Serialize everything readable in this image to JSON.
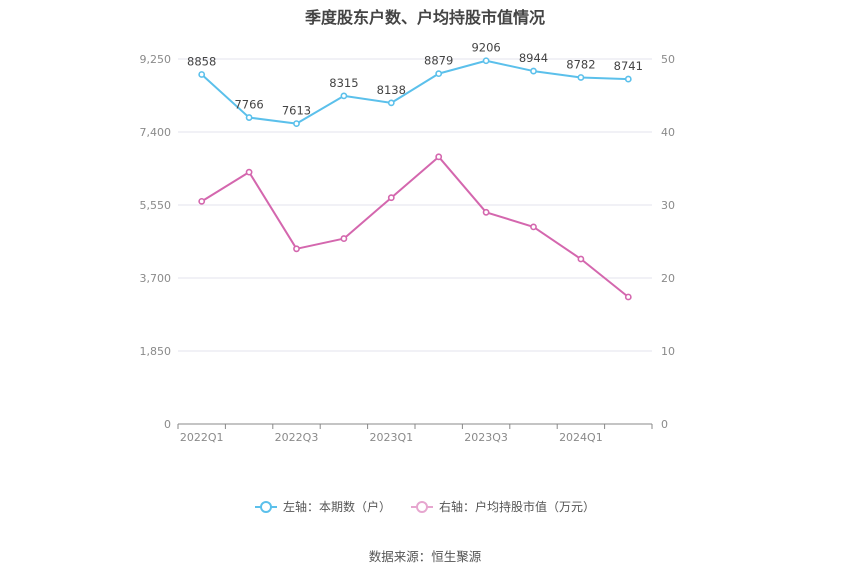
{
  "chart_data": {
    "type": "line",
    "title": "季度股东户数、户均持股市值情况",
    "categories": [
      "2022Q1",
      "2022Q2",
      "2022Q3",
      "2022Q4",
      "2023Q1",
      "2023Q2",
      "2023Q3",
      "2023Q4",
      "2024Q1",
      "2024Q2"
    ],
    "x_tick_labels": [
      "2022Q1",
      "2022Q3",
      "2023Q1",
      "2023Q3",
      "2024Q1"
    ],
    "left_axis": {
      "ylim": [
        0,
        9250
      ],
      "ticks": [
        "0",
        "1,850",
        "3,700",
        "5,550",
        "7,400",
        "9,250"
      ]
    },
    "right_axis": {
      "ylim": [
        0,
        50
      ],
      "ticks": [
        "0",
        "10",
        "20",
        "30",
        "40",
        "50"
      ]
    },
    "series": [
      {
        "name": "左轴：本期数（户）",
        "axis": "left",
        "color": "#5bc0eb",
        "values": [
          8858,
          7766,
          7613,
          8315,
          8138,
          8879,
          9206,
          8944,
          8782,
          8741
        ],
        "labels": [
          "8858",
          "7766",
          "7613",
          "8315",
          "8138",
          "8879",
          "9206",
          "8944",
          "8782",
          "8741"
        ]
      },
      {
        "name": "右轴：户均持股市值（万元）",
        "axis": "right",
        "color": "#d467ae",
        "values": [
          30.5,
          34.5,
          24.0,
          25.4,
          31.0,
          36.6,
          29.0,
          27.0,
          22.6,
          17.4
        ]
      }
    ],
    "grid": true,
    "legend_position": "bottom"
  },
  "footer": {
    "source": "数据来源：恒生聚源"
  }
}
